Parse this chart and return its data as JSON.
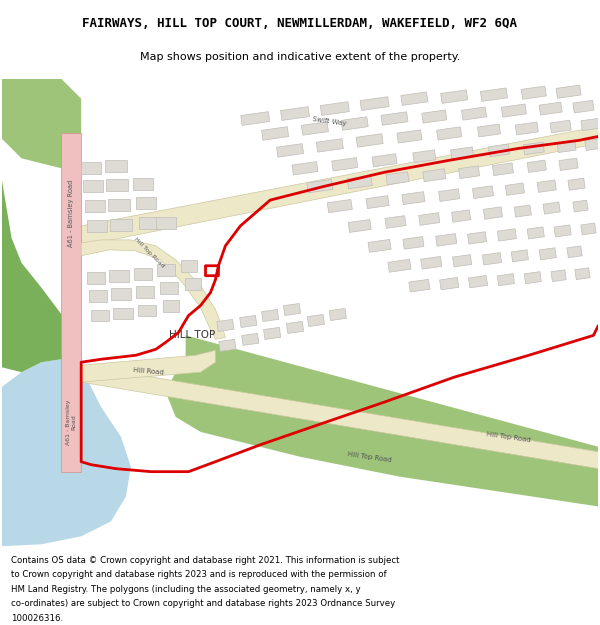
{
  "title": "FAIRWAYS, HILL TOP COURT, NEWMILLERDAM, WAKEFIELD, WF2 6QA",
  "subtitle": "Map shows position and indicative extent of the property.",
  "footer": "Contains OS data © Crown copyright and database right 2021. This information is subject to Crown copyright and database rights 2023 and is reproduced with the permission of HM Land Registry. The polygons (including the associated geometry, namely x, y co-ordinates) are subject to Crown copyright and database rights 2023 Ordnance Survey 100026316.",
  "map_bg": "#ffffff",
  "water_color": "#b8d8e8",
  "green_color": "#9ec47a",
  "green_dark_color": "#7ab05a",
  "road_color": "#ede8c8",
  "road_edge_color": "#ccc8a0",
  "pink_road_color": "#f0c0c0",
  "pink_road_edge": "#d09090",
  "building_fill": "#dddbd4",
  "building_edge": "#c0bdb8",
  "red_color": "#dd0000",
  "red_lw": 2.0,
  "title_fs": 9,
  "subtitle_fs": 8,
  "footer_fs": 6.2,
  "label_fs": 5.5,
  "small_label_fs": 4.8
}
